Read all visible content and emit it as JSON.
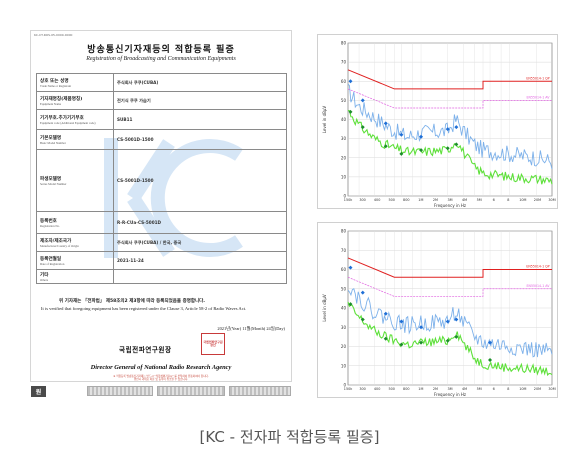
{
  "document": {
    "doc_id": "KC-CT-ROS-05-0000-0000",
    "title_ko": "방송통신기자재등의 적합등록 필증",
    "title_en": "Registration of Broadcasting and Communication Equipments",
    "fields": [
      {
        "label_ko": "상호 또는 성명",
        "label_en": "Trade Name or Registrant",
        "value": "주식회사 쿠쿠(CUBA)"
      },
      {
        "label_ko": "기자재명칭(제품명칭)",
        "label_en": "Equipment Name",
        "value": "전기식 쿠쿠 가습기"
      },
      {
        "label_ko": "기기부호.추가기기부호",
        "label_en": "Equipment code (Additional Equipment code)",
        "value": "SUB11"
      },
      {
        "label_ko": "기본모델명",
        "label_en": "Basic Model Number",
        "value": "CS-5001D-1500"
      },
      {
        "label_ko": "파생모델명",
        "label_en": "Series Model Number",
        "value": "CS-5001D-1500"
      },
      {
        "label_ko": "등록번호",
        "label_en": "Registration No.",
        "value": "R-R-CUa-CS-5001D"
      },
      {
        "label_ko": "제조자/제조국가",
        "label_en": "Manufacturer/Country of Origin",
        "value": "주식회사 쿠쿠(CUBA) / 한국, 중국"
      },
      {
        "label_ko": "등록연월일",
        "label_en": "Date of Registration",
        "value": "2021-11-24"
      },
      {
        "label_ko": "기타",
        "label_en": "Others",
        "value": ""
      }
    ],
    "cert_ko": "위 기자재는 「전파법」 제58조의2 제3항에 따라 등록되었음을 증명합니다.",
    "cert_en": "It is verified that foregoing equipment has been registered under the Clause 3, Article 58-2 of Radio Waves Act.",
    "date": "2021년(Year) 11월(Month) 24일(Day)",
    "agency_ko": "국립전파연구원장",
    "seal_text": "국립전파연구원장인",
    "director_en": "Director General of National Radio Research Agency",
    "footnote_1": "※ 적합등록 방송통신기자재는 반드시 \"적합성평가표시\" 를 부착하여 유통하여야 합니다.",
    "footnote_2": "위반시 과태료 처분 및 등록이 취소될 수 있습니다."
  },
  "thumbnails": {
    "original_label": "원"
  },
  "graphs": {
    "ylabel": "Level in dBμV",
    "xlabel": "Frequency in Hz",
    "y_ticks": [
      "80",
      "70",
      "60",
      "50",
      "40",
      "30",
      "20",
      "10",
      "0"
    ],
    "x_ticks": [
      "150k",
      "300",
      "400",
      "500",
      "800",
      "1M",
      "2M",
      "3M",
      "4M",
      "5M",
      "6",
      "8",
      "10M",
      "20M",
      "30M"
    ],
    "limit_qp_label": "EN55014-1 QP",
    "limit_av_label": "EN55014-1 AV"
  },
  "chart_data": [
    {
      "type": "line",
      "ylabel": "Level in dBμV",
      "xlabel": "Frequency in Hz",
      "ylim": [
        0,
        80
      ],
      "x_scale": "log",
      "xlim": [
        0.15,
        30
      ],
      "series": [
        {
          "name": "EN55014-1 QP",
          "color": "#e02020",
          "x": [
            0.15,
            0.5,
            0.5,
            5,
            5,
            30
          ],
          "y": [
            66,
            56,
            56,
            56,
            60,
            60
          ]
        },
        {
          "name": "EN55014-1 AV",
          "color": "#e060e0",
          "x": [
            0.15,
            0.5,
            0.5,
            5,
            5,
            30
          ],
          "y": [
            56,
            46,
            46,
            46,
            50,
            50
          ]
        },
        {
          "x": [
            0.15,
            0.2,
            0.3,
            0.4,
            0.5,
            0.7,
            1,
            2,
            2.5,
            3,
            4,
            5,
            7,
            10,
            20,
            30
          ],
          "y": [
            55,
            47,
            41,
            37,
            34,
            31,
            33,
            34,
            40,
            34,
            27,
            24,
            23,
            22,
            20,
            18
          ],
          "color": "#6fa8e8"
        },
        {
          "x": [
            0.15,
            0.2,
            0.3,
            0.4,
            0.5,
            0.7,
            1,
            2,
            2.5,
            3,
            4,
            5,
            7,
            10,
            20,
            30
          ],
          "y": [
            45,
            37,
            30,
            27,
            25,
            23,
            23,
            24,
            29,
            23,
            15,
            12,
            11,
            10,
            9,
            8
          ],
          "color": "#5ee03a"
        },
        {
          "x": [
            0.16,
            0.22,
            0.4,
            0.6,
            1,
            2,
            2.5
          ],
          "y": [
            60,
            50,
            38,
            32,
            31,
            35,
            36
          ],
          "color": "#1f6fd6"
        },
        {
          "x": [
            0.16,
            0.22,
            0.4,
            0.6,
            1,
            2,
            2.5
          ],
          "y": [
            44,
            36,
            26,
            22,
            24,
            25,
            27
          ],
          "color": "#1c8e2a"
        }
      ]
    },
    {
      "type": "line",
      "ylabel": "Level in dBμV",
      "xlabel": "Frequency in Hz",
      "ylim": [
        0,
        80
      ],
      "x_scale": "log",
      "xlim": [
        0.15,
        30
      ],
      "series": [
        {
          "name": "EN55014-1 QP",
          "color": "#e02020",
          "x": [
            0.15,
            0.5,
            0.5,
            5,
            5,
            30
          ],
          "y": [
            66,
            56,
            56,
            56,
            60,
            60
          ]
        },
        {
          "name": "EN55014-1 AV",
          "color": "#e060e0",
          "x": [
            0.15,
            0.5,
            0.5,
            5,
            5,
            30
          ],
          "y": [
            56,
            46,
            46,
            46,
            50,
            50
          ]
        },
        {
          "x": [
            0.15,
            0.2,
            0.3,
            0.4,
            0.5,
            0.7,
            1,
            2,
            2.5,
            3,
            4,
            5,
            7,
            10,
            20,
            30
          ],
          "y": [
            53,
            45,
            38,
            35,
            33,
            31,
            32,
            33,
            39,
            32,
            25,
            22,
            21,
            20,
            18,
            17
          ],
          "color": "#6fa8e8"
        },
        {
          "x": [
            0.15,
            0.2,
            0.3,
            0.4,
            0.5,
            0.7,
            1,
            2,
            2.5,
            3,
            4,
            5,
            7,
            10,
            20,
            30
          ],
          "y": [
            42,
            35,
            28,
            25,
            23,
            21,
            22,
            23,
            28,
            22,
            14,
            11,
            10,
            9,
            8,
            7
          ],
          "color": "#5ee03a"
        },
        {
          "x": [
            0.16,
            0.22,
            0.4,
            0.6,
            1,
            2,
            2.5,
            6
          ],
          "y": [
            61,
            48,
            37,
            33,
            30,
            33,
            34,
            22
          ],
          "color": "#1f6fd6"
        },
        {
          "x": [
            0.16,
            0.22,
            0.4,
            0.6,
            1,
            2,
            2.5,
            6
          ],
          "y": [
            42,
            34,
            24,
            21,
            22,
            23,
            25,
            13
          ],
          "color": "#1c8e2a"
        }
      ]
    }
  ],
  "caption": "[KC - 전자파 적합등록 필증]"
}
